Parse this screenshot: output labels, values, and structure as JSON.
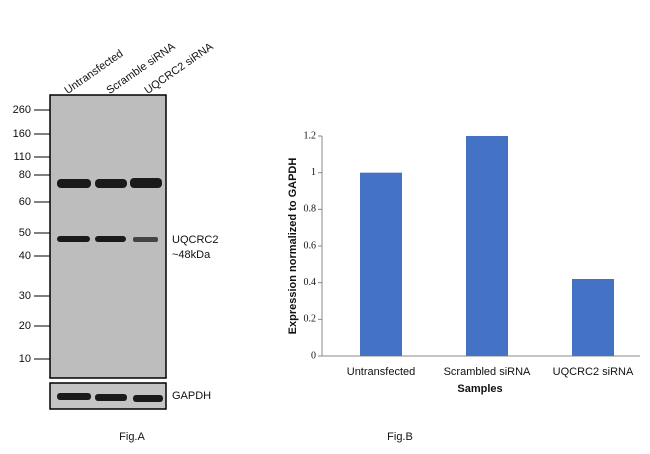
{
  "blot": {
    "lanes": [
      "Untransfected",
      "Scramble siRNA",
      "UQCRC2 siRNA"
    ],
    "markers": [
      260,
      160,
      110,
      80,
      60,
      50,
      40,
      30,
      20,
      10
    ],
    "target": "UQCRC2",
    "size": "~48kDa",
    "loading": "GAPDH",
    "caption": "Fig.A"
  },
  "chart_data": {
    "type": "bar",
    "categories": [
      "Untransfected",
      "Scrambled siRNA",
      "UQCRC2 siRNA"
    ],
    "values": [
      1,
      1.2,
      0.42
    ],
    "color": "#4472c4",
    "ylim": [
      0,
      1.2
    ],
    "yticks": [
      0,
      0.2,
      0.4,
      0.6,
      0.8,
      1,
      1.2
    ],
    "xlabel": "Samples",
    "ylabel": "Expression normalized to GAPDH",
    "caption": "Fig.B"
  }
}
